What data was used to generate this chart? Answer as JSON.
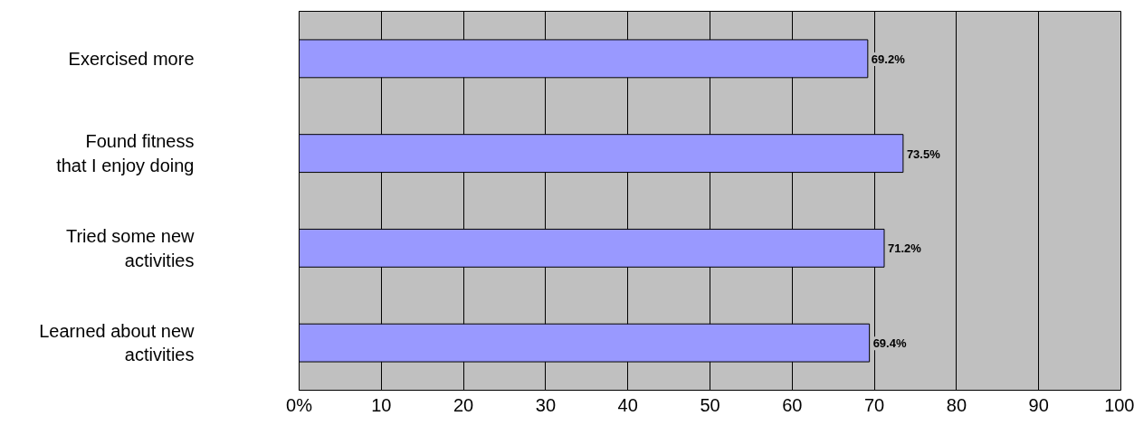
{
  "chart_data": {
    "type": "bar",
    "orientation": "horizontal",
    "categories": [
      "Exercised more",
      "Found fitness\nthat I enjoy doing",
      "Tried some new\nactivities",
      "Learned about new\nactivities"
    ],
    "values": [
      69.2,
      73.5,
      71.2,
      69.4
    ],
    "value_labels": [
      "69.2%",
      "73.5%",
      "71.2%",
      "69.4%"
    ],
    "color": "#9999ff",
    "xlim": [
      0,
      100
    ],
    "xticks": [
      {
        "value": 0,
        "label": "0%"
      },
      10,
      20,
      30,
      40,
      50,
      60,
      70,
      80,
      90,
      100
    ],
    "grid": "x"
  }
}
